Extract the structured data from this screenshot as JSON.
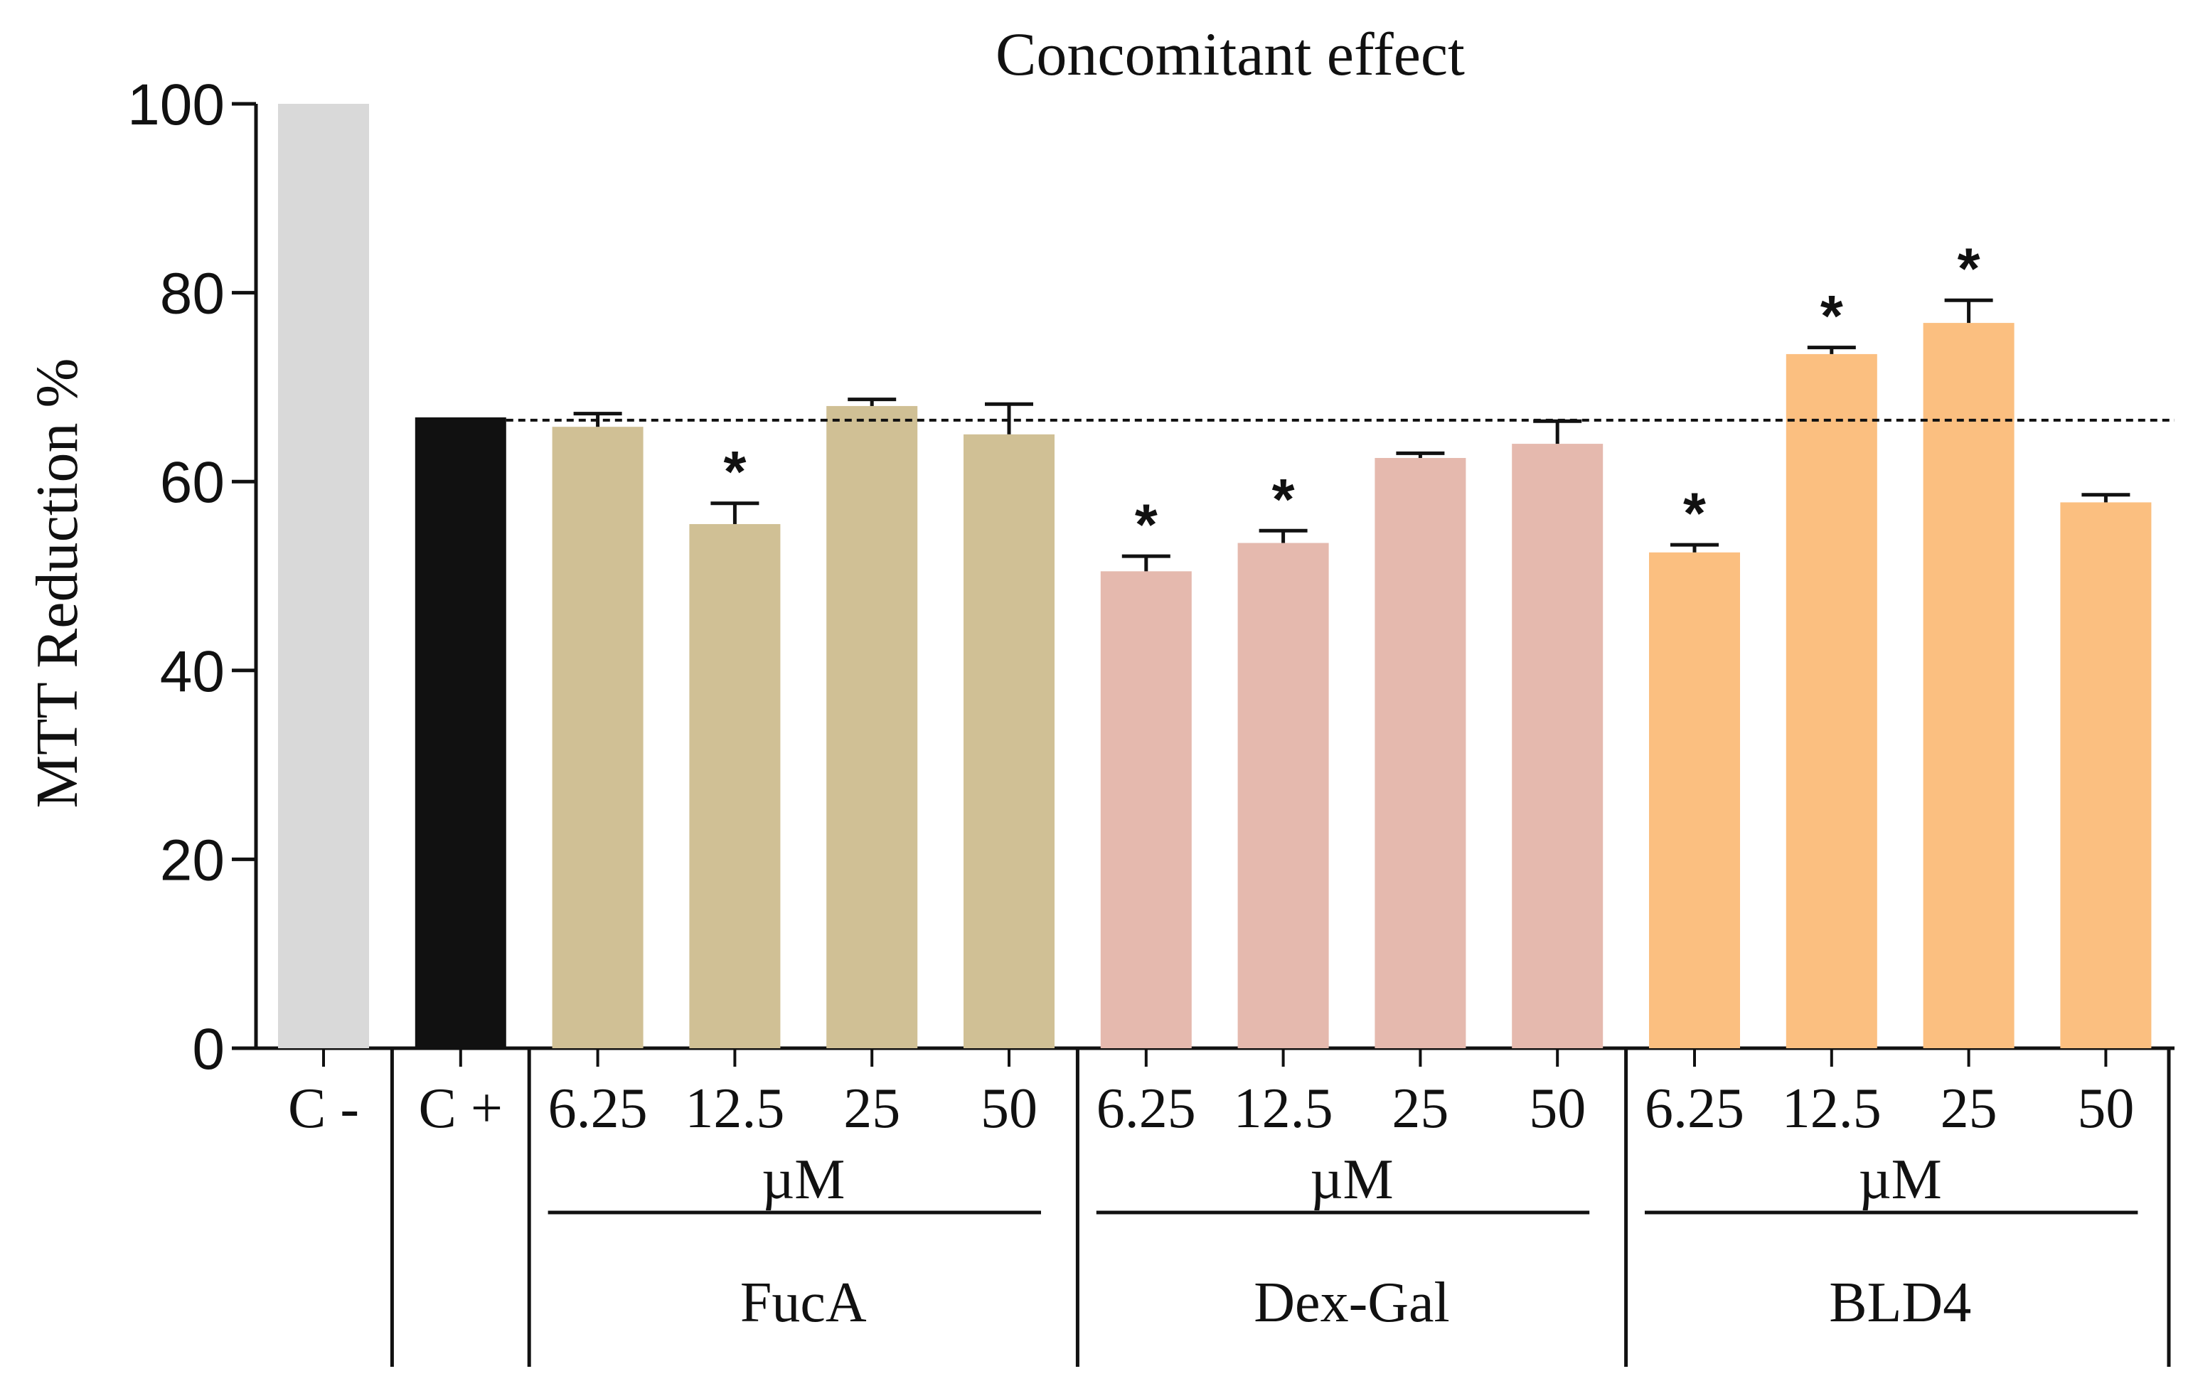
{
  "chart_data": {
    "type": "bar",
    "title": "Concomitant effect",
    "ylabel": "MTT Reduction %",
    "xlabel": "",
    "ylim": [
      0,
      100
    ],
    "yticks": [
      0,
      20,
      40,
      60,
      80,
      100
    ],
    "reference_line": 66.5,
    "unit_label": "µM",
    "controls": [
      {
        "label": "C -",
        "value": 100,
        "error": 0,
        "color": "#d9d9d9",
        "significant": false
      },
      {
        "label": "C +",
        "value": 66.8,
        "error": 0,
        "color": "#111111",
        "significant": false
      }
    ],
    "groups": [
      {
        "name": "FucA",
        "color": "#d0c095",
        "categories": [
          "6.25",
          "12.5",
          "25",
          "50"
        ],
        "values": [
          65.8,
          55.5,
          68.0,
          65.0
        ],
        "errors": [
          1.4,
          2.2,
          0.7,
          3.2
        ],
        "significant": [
          false,
          true,
          false,
          false
        ]
      },
      {
        "name": "Dex-Gal",
        "color": "#e5b9ae",
        "categories": [
          "6.25",
          "12.5",
          "25",
          "50"
        ],
        "values": [
          50.5,
          53.5,
          62.5,
          64.0
        ],
        "errors": [
          1.6,
          1.3,
          0.5,
          2.4
        ],
        "significant": [
          true,
          true,
          false,
          false
        ]
      },
      {
        "name": "BLD4",
        "color": "#fbbf80",
        "categories": [
          "6.25",
          "12.5",
          "25",
          "50"
        ],
        "values": [
          52.5,
          73.5,
          76.8,
          57.8
        ],
        "errors": [
          0.8,
          0.7,
          2.4,
          0.8
        ],
        "significant": [
          true,
          true,
          true,
          false
        ]
      }
    ],
    "significance_marker": "*"
  }
}
